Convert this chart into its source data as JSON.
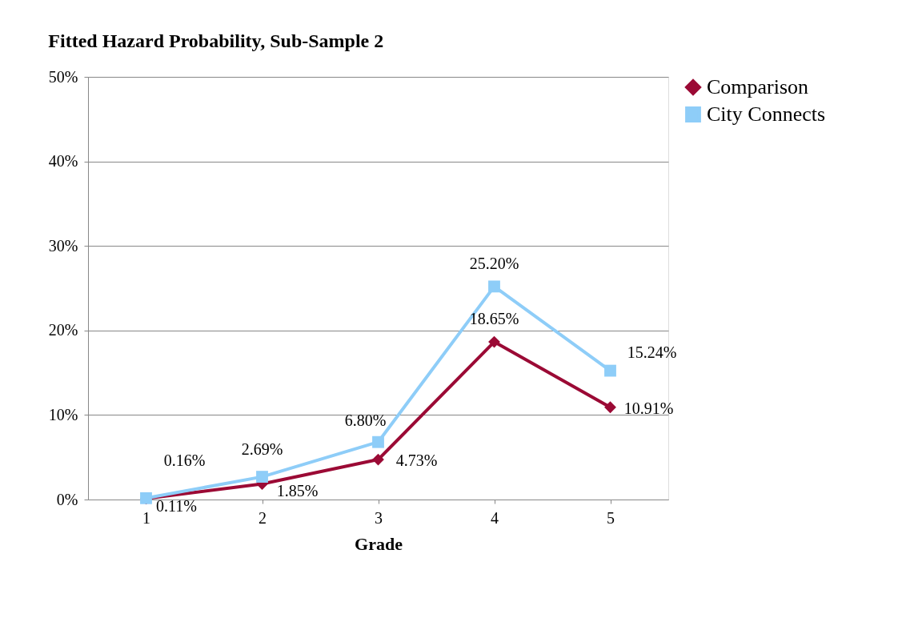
{
  "chart_data": {
    "type": "line",
    "title": "Fitted Hazard Probability, Sub-Sample 2",
    "xlabel": "Grade",
    "categories": [
      "1",
      "2",
      "3",
      "4",
      "5"
    ],
    "series": [
      {
        "name": "Comparison",
        "color": "#9b0a35",
        "marker": "diamond",
        "values": [
          0.11,
          1.85,
          4.73,
          18.65,
          10.91
        ],
        "value_labels": [
          "0.11%",
          "1.85%",
          "4.73%",
          "18.65%",
          "10.91%"
        ]
      },
      {
        "name": "City Connects",
        "color": "#8ecdf8",
        "marker": "square",
        "values": [
          0.16,
          2.69,
          6.8,
          25.2,
          15.24
        ],
        "value_labels": [
          "0.16%",
          "2.69%",
          "6.80%",
          "25.20%",
          "15.24%"
        ]
      }
    ],
    "ylim": [
      0,
      50
    ],
    "yticks": [
      {
        "value": 0,
        "label": "0%"
      },
      {
        "value": 10,
        "label": "10%"
      },
      {
        "value": 20,
        "label": "20%"
      },
      {
        "value": 30,
        "label": "30%"
      },
      {
        "value": 40,
        "label": "40%"
      },
      {
        "value": 50,
        "label": "50%"
      }
    ],
    "grid": "y",
    "legend": "right",
    "line_style": "solid"
  }
}
